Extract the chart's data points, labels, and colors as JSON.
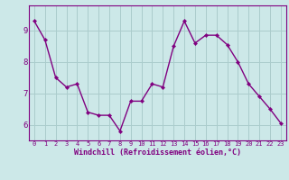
{
  "x": [
    0,
    1,
    2,
    3,
    4,
    5,
    6,
    7,
    8,
    9,
    10,
    11,
    12,
    13,
    14,
    15,
    16,
    17,
    18,
    19,
    20,
    21,
    22,
    23
  ],
  "y": [
    9.3,
    8.7,
    7.5,
    7.2,
    7.3,
    6.4,
    6.3,
    6.3,
    5.8,
    6.75,
    6.75,
    7.3,
    7.2,
    8.5,
    9.3,
    8.6,
    8.85,
    8.85,
    8.55,
    8.0,
    7.3,
    6.9,
    6.5,
    6.05
  ],
  "line_color": "#800080",
  "marker_color": "#800080",
  "bg_color": "#cce8e8",
  "grid_color": "#aacccc",
  "xlabel": "Windchill (Refroidissement éolien,°C)",
  "xlabel_color": "#800080",
  "xtick_labels": [
    "0",
    "1",
    "2",
    "3",
    "4",
    "5",
    "6",
    "7",
    "8",
    "9",
    "10",
    "11",
    "12",
    "13",
    "14",
    "15",
    "16",
    "17",
    "18",
    "19",
    "20",
    "21",
    "22",
    "23"
  ],
  "ytick_labels": [
    "6",
    "7",
    "8",
    "9"
  ],
  "ylim": [
    5.5,
    9.8
  ],
  "xlim": [
    -0.5,
    23.5
  ],
  "spine_color": "#800080"
}
